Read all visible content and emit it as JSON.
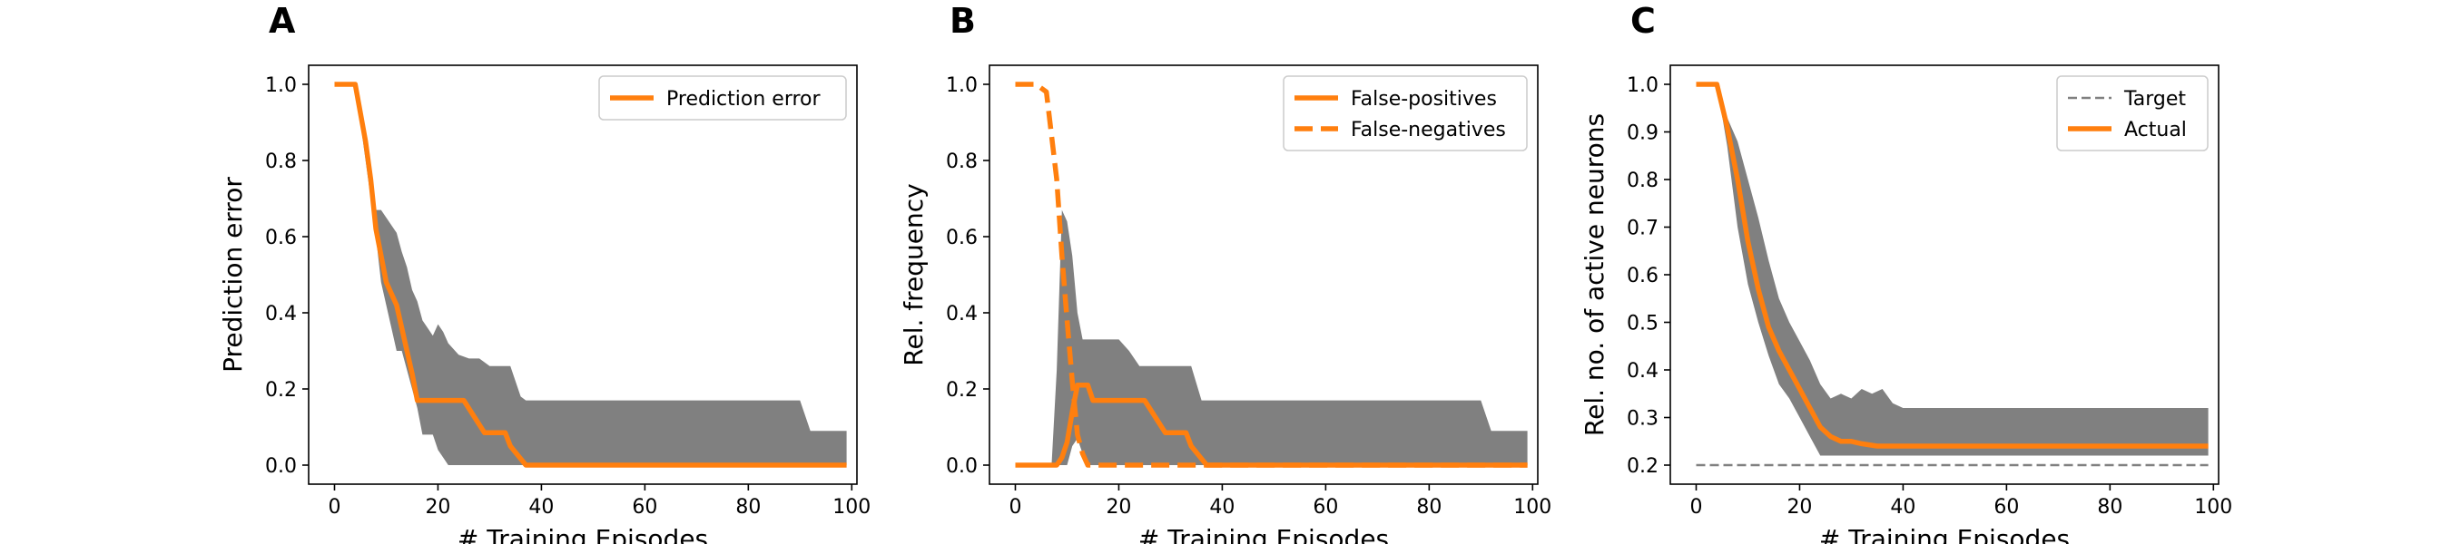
{
  "colors": {
    "line": "#ff7f0e",
    "band": "#808080",
    "target": "#808080",
    "axis": "#000000",
    "legend_border": "#cccccc"
  },
  "chart_data": [
    {
      "panel": "A",
      "type": "line",
      "xlabel": "# Training Episodes",
      "ylabel": "Prediction error",
      "xlim": [
        -5,
        101
      ],
      "ylim": [
        -0.05,
        1.05
      ],
      "xticks": [
        0,
        20,
        40,
        60,
        80,
        100
      ],
      "yticks": [
        0.0,
        0.2,
        0.4,
        0.6,
        0.8,
        1.0
      ],
      "ytick_labels": [
        "0.0",
        "0.2",
        "0.4",
        "0.6",
        "0.8",
        "1.0"
      ],
      "legend_position": "upper right",
      "band": {
        "x": [
          0,
          4,
          6,
          8,
          9,
          10,
          12,
          13,
          14,
          15,
          16,
          17,
          18,
          19,
          20,
          21,
          22,
          24,
          26,
          28,
          30,
          32,
          34,
          36,
          37,
          90,
          92,
          99
        ],
        "upper": [
          1.0,
          1.0,
          0.88,
          0.67,
          0.67,
          0.65,
          0.61,
          0.56,
          0.52,
          0.46,
          0.43,
          0.38,
          0.36,
          0.34,
          0.37,
          0.35,
          0.32,
          0.29,
          0.28,
          0.28,
          0.26,
          0.26,
          0.26,
          0.18,
          0.17,
          0.17,
          0.09,
          0.09
        ],
        "lower": [
          1.0,
          1.0,
          0.8,
          0.6,
          0.48,
          0.42,
          0.3,
          0.3,
          0.25,
          0.2,
          0.15,
          0.08,
          0.08,
          0.08,
          0.04,
          0.02,
          0.0,
          0.0,
          0.0,
          0.0,
          0.0,
          0.0,
          0.0,
          0.0,
          0.0,
          0.0,
          0.0,
          0.0
        ]
      },
      "series": [
        {
          "name": "Prediction error",
          "style": "solid",
          "x": [
            0,
            4,
            6,
            7,
            8,
            9,
            10,
            12,
            13,
            14,
            15,
            16,
            24,
            25,
            29,
            33,
            34,
            37,
            99
          ],
          "y": [
            1.0,
            1.0,
            0.85,
            0.75,
            0.62,
            0.55,
            0.48,
            0.42,
            0.36,
            0.3,
            0.24,
            0.17,
            0.17,
            0.17,
            0.085,
            0.085,
            0.05,
            0.0,
            0.0
          ]
        }
      ]
    },
    {
      "panel": "B",
      "type": "line",
      "xlabel": "# Training Episodes",
      "ylabel": "Rel. frequency",
      "xlim": [
        -5,
        101
      ],
      "ylim": [
        -0.05,
        1.05
      ],
      "xticks": [
        0,
        20,
        40,
        60,
        80,
        100
      ],
      "yticks": [
        0.0,
        0.2,
        0.4,
        0.6,
        0.8,
        1.0
      ],
      "ytick_labels": [
        "0.0",
        "0.2",
        "0.4",
        "0.6",
        "0.8",
        "1.0"
      ],
      "legend_position": "upper right",
      "band": {
        "x": [
          0,
          7,
          8,
          9,
          10,
          11,
          12,
          13,
          14,
          16,
          20,
          22,
          24,
          32,
          34,
          36,
          90,
          92,
          99
        ],
        "upper": [
          0.0,
          0.0,
          0.25,
          0.67,
          0.64,
          0.55,
          0.4,
          0.33,
          0.33,
          0.33,
          0.33,
          0.3,
          0.26,
          0.26,
          0.26,
          0.17,
          0.17,
          0.09,
          0.09
        ],
        "lower": [
          0.0,
          0.0,
          0.0,
          0.0,
          0.0,
          0.05,
          0.07,
          0.03,
          0.0,
          0.0,
          0.0,
          0.0,
          0.0,
          0.0,
          0.0,
          0.0,
          0.0,
          0.0,
          0.0
        ]
      },
      "series": [
        {
          "name": "False-positives",
          "style": "solid",
          "x": [
            0,
            8,
            9,
            10,
            11,
            12,
            14,
            15,
            16,
            24,
            25,
            29,
            33,
            34,
            37,
            99
          ],
          "y": [
            0.0,
            0.0,
            0.02,
            0.06,
            0.14,
            0.21,
            0.21,
            0.17,
            0.17,
            0.17,
            0.17,
            0.085,
            0.085,
            0.05,
            0.0,
            0.0
          ],
          "highlight_x": [
            0,
            8,
            9,
            10,
            11,
            12,
            14,
            15,
            16,
            24,
            25,
            29,
            33,
            34,
            37,
            99
          ]
        },
        {
          "name": "False-negatives",
          "style": "dashed",
          "x": [
            0,
            4,
            6,
            8,
            9,
            10,
            11,
            12,
            13,
            14,
            16,
            99
          ],
          "y": [
            1.0,
            1.0,
            0.98,
            0.75,
            0.55,
            0.38,
            0.22,
            0.08,
            0.03,
            0.0,
            0.0,
            0.0
          ]
        }
      ]
    },
    {
      "panel": "C",
      "type": "line",
      "xlabel": "# Training Episodes",
      "ylabel": "Rel. no. of active neurons",
      "xlim": [
        -5,
        101
      ],
      "ylim": [
        0.16,
        1.04
      ],
      "xticks": [
        0,
        20,
        40,
        60,
        80,
        100
      ],
      "yticks": [
        0.2,
        0.3,
        0.4,
        0.5,
        0.6,
        0.7,
        0.8,
        0.9,
        1.0
      ],
      "ytick_labels": [
        "0.2",
        "0.3",
        "0.4",
        "0.5",
        "0.6",
        "0.7",
        "0.8",
        "0.9",
        "1.0"
      ],
      "legend_position": "upper right",
      "band": {
        "x": [
          0,
          4,
          6,
          8,
          10,
          12,
          14,
          16,
          18,
          20,
          22,
          24,
          26,
          28,
          30,
          32,
          34,
          36,
          38,
          40,
          99
        ],
        "upper": [
          1.0,
          1.0,
          0.93,
          0.88,
          0.8,
          0.72,
          0.63,
          0.55,
          0.5,
          0.46,
          0.42,
          0.37,
          0.34,
          0.35,
          0.34,
          0.36,
          0.35,
          0.36,
          0.33,
          0.32,
          0.32
        ],
        "lower": [
          1.0,
          1.0,
          0.87,
          0.7,
          0.58,
          0.5,
          0.43,
          0.37,
          0.34,
          0.3,
          0.26,
          0.22,
          0.22,
          0.22,
          0.22,
          0.22,
          0.22,
          0.22,
          0.22,
          0.22,
          0.22
        ]
      },
      "series": [
        {
          "name": "Target",
          "style": "dashed-thin",
          "x": [
            0,
            99
          ],
          "y": [
            0.2,
            0.2
          ]
        },
        {
          "name": "Actual",
          "style": "solid",
          "x": [
            0,
            4,
            6,
            8,
            10,
            12,
            14,
            16,
            18,
            20,
            22,
            24,
            26,
            28,
            30,
            32,
            35,
            40,
            99
          ],
          "y": [
            1.0,
            1.0,
            0.91,
            0.8,
            0.67,
            0.57,
            0.49,
            0.44,
            0.4,
            0.36,
            0.32,
            0.28,
            0.26,
            0.25,
            0.25,
            0.245,
            0.24,
            0.24,
            0.24
          ]
        }
      ]
    }
  ]
}
